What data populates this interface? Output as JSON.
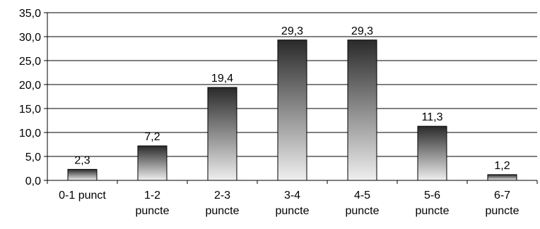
{
  "chart_data": {
    "type": "bar",
    "categories": [
      [
        "0-1 punct"
      ],
      [
        "1-2",
        "puncte"
      ],
      [
        "2-3",
        "puncte"
      ],
      [
        "3-4",
        "puncte"
      ],
      [
        "4-5",
        "puncte"
      ],
      [
        "5-6",
        "puncte"
      ],
      [
        "6-7",
        "puncte"
      ]
    ],
    "values": [
      2.3,
      7.2,
      19.4,
      29.3,
      29.3,
      11.3,
      1.2
    ],
    "data_labels": [
      "2,3",
      "7,2",
      "19,4",
      "29,3",
      "29,3",
      "11,3",
      "1,2"
    ],
    "y_ticks": [
      0,
      5,
      10,
      15,
      20,
      25,
      30,
      35
    ],
    "y_tick_labels": [
      "0,0",
      "5,0",
      "10,0",
      "15,0",
      "20,0",
      "25,0",
      "30,0",
      "35,0"
    ],
    "ylim": [
      0,
      35
    ],
    "grid": true,
    "legend": "none",
    "title": "",
    "xlabel": "",
    "ylabel": "",
    "bar_gradient": {
      "top": "#2a2a2a",
      "bottom": "#efefef"
    }
  }
}
